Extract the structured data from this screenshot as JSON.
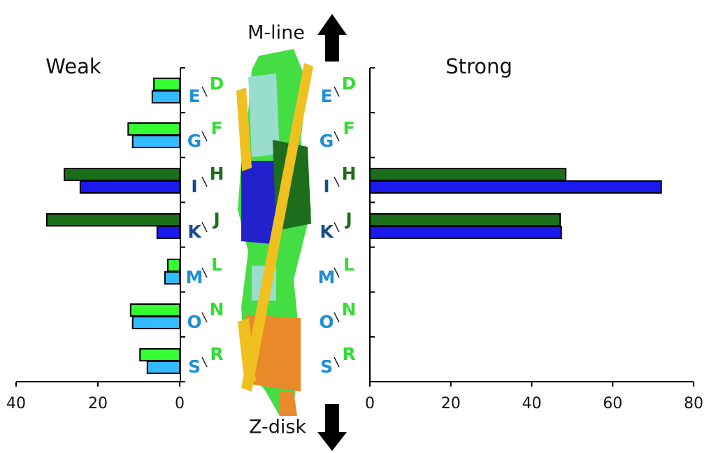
{
  "chart_data": [
    {
      "type": "bar",
      "orientation": "horizontal",
      "title": "Weak",
      "categories": [
        "E",
        "G",
        "I",
        "K",
        "M",
        "O",
        "S"
      ],
      "category_colors": [
        "#1e8fd6",
        "#1e8fd6",
        "#1a4a8a",
        "#1a4a8a",
        "#1e8fd6",
        "#1e8fd6",
        "#1e8fd6"
      ],
      "categories_upper": [
        "D",
        "F",
        "H",
        "J",
        "L",
        "N",
        "R"
      ],
      "categories_upper_colors": [
        "#33dd33",
        "#33dd33",
        "#1a6e1a",
        "#1a6e1a",
        "#33dd33",
        "#33dd33",
        "#33dd33"
      ],
      "series": [
        {
          "colors": [
            "#33ff33",
            "#33ff33",
            "#1a6e1a",
            "#1a6e1a",
            "#33ff33",
            "#33ff33",
            "#33ff33"
          ],
          "values": [
            6.3,
            12.6,
            28.2,
            32.5,
            2.9,
            12,
            9.7
          ]
        },
        {
          "colors": [
            "#33bbff",
            "#33bbff",
            "#1a1aee",
            "#1a1aee",
            "#33bbff",
            "#33bbff",
            "#33bbff"
          ],
          "values": [
            6.7,
            11.5,
            24.3,
            5.5,
            3.6,
            11.5,
            7.9
          ]
        }
      ],
      "xlim": [
        40,
        0
      ],
      "xticks": [
        40,
        20,
        0
      ]
    },
    {
      "type": "bar",
      "orientation": "horizontal",
      "title": "Strong",
      "categories": [
        "E",
        "G",
        "I",
        "K",
        "M",
        "O",
        "S"
      ],
      "category_colors": [
        "#1e8fd6",
        "#1e8fd6",
        "#1a4a8a",
        "#1a4a8a",
        "#1e8fd6",
        "#1e8fd6",
        "#1e8fd6"
      ],
      "categories_upper": [
        "D",
        "F",
        "H",
        "J",
        "L",
        "N",
        "R"
      ],
      "categories_upper_colors": [
        "#33dd33",
        "#33dd33",
        "#1a6e1a",
        "#1a6e1a",
        "#33dd33",
        "#33dd33",
        "#33dd33"
      ],
      "series": [
        {
          "colors": [
            "#33ff33",
            "#33ff33",
            "#1a6e1a",
            "#1a6e1a",
            "#33ff33",
            "#33ff33",
            "#33ff33"
          ],
          "values": [
            0,
            0,
            48.4,
            47,
            0,
            0,
            0
          ]
        },
        {
          "colors": [
            "#33bbff",
            "#33bbff",
            "#1a1aee",
            "#1a1aee",
            "#33bbff",
            "#33bbff",
            "#33bbff"
          ],
          "values": [
            0,
            0,
            72,
            47.3,
            0,
            0,
            0
          ]
        }
      ],
      "xlim": [
        0,
        80
      ],
      "xticks": [
        0,
        20,
        40,
        60,
        80
      ]
    }
  ],
  "annotations": {
    "top": "M-line",
    "bottom": "Z-disk"
  }
}
